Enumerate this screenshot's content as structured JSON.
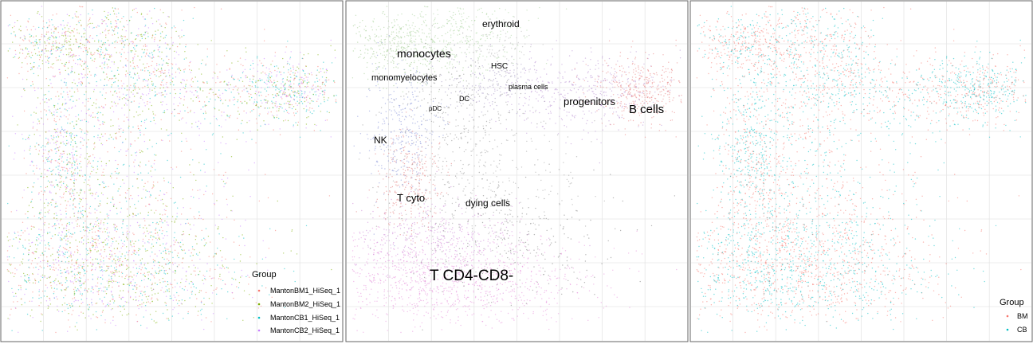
{
  "chart_data": [
    {
      "type": "scatter",
      "color_by": "sample",
      "grid": true,
      "legend": {
        "title": "Group",
        "placement": "bottom-right",
        "items": [
          {
            "name": "MantonBM1_HiSeq_1",
            "color": "#f8766d"
          },
          {
            "name": "MantonBM2_HiSeq_1",
            "color": "#7cae00"
          },
          {
            "name": "MantonCB1_HiSeq_1",
            "color": "#00bfc4"
          },
          {
            "name": "MantonCB2_HiSeq_1",
            "color": "#c77cff"
          }
        ]
      }
    },
    {
      "type": "scatter",
      "color_by": "cell type",
      "grid": true,
      "annotations": [
        {
          "text": "erythroid",
          "size": "medium"
        },
        {
          "text": "monocytes",
          "size": "large"
        },
        {
          "text": "HSC",
          "size": "small"
        },
        {
          "text": "monomyelocytes",
          "size": "small"
        },
        {
          "text": "plasma cells",
          "size": "small"
        },
        {
          "text": "DC",
          "size": "small"
        },
        {
          "text": "pDC",
          "size": "small"
        },
        {
          "text": "progenitors",
          "size": "medium"
        },
        {
          "text": "B cells",
          "size": "large"
        },
        {
          "text": "NK",
          "size": "medium"
        },
        {
          "text": "T cyto",
          "size": "medium"
        },
        {
          "text": "dying cells",
          "size": "medium"
        },
        {
          "text": "T CD4-CD8-",
          "size": "xlarge"
        }
      ]
    },
    {
      "type": "scatter",
      "color_by": "tissue",
      "grid": true,
      "legend": {
        "title": "Group",
        "placement": "bottom-right",
        "items": [
          {
            "name": "BM",
            "color": "#f8766d"
          },
          {
            "name": "CB",
            "color": "#00bfc4"
          }
        ]
      }
    }
  ]
}
